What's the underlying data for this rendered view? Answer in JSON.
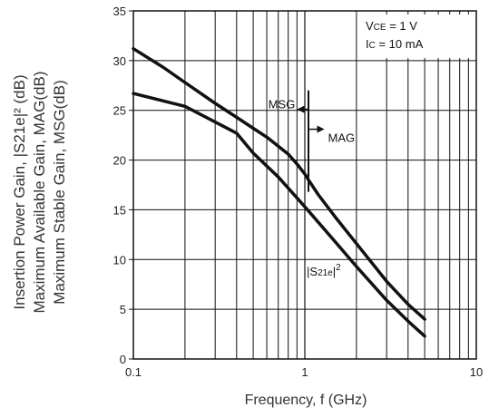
{
  "chart_data": {
    "type": "line",
    "xlabel": "Frequency, f (GHz)",
    "ylabel": {
      "line1": "Insertion Power Gain, |S21e|² (dB)",
      "line2": "Maximum Available Gain, MAG(dB)",
      "line3": "Maximum Stable Gain, MSG(dB)"
    },
    "x_scale": "log",
    "xlim": [
      0.1,
      10
    ],
    "ylim": [
      0,
      35
    ],
    "x_ticks": [
      "0.1",
      "1",
      "10"
    ],
    "y_ticks": [
      "0",
      "5",
      "10",
      "15",
      "20",
      "25",
      "30",
      "35"
    ],
    "grid": true,
    "conditions": {
      "vce": {
        "prefix": "V",
        "sub": "CE",
        "value": " = 1 V"
      },
      "ic": {
        "prefix": "I",
        "sub": "C",
        "value": " = 10 mA"
      }
    },
    "series": [
      {
        "key": "msg_mag",
        "x": [
          0.1,
          0.15,
          0.2,
          0.3,
          0.4,
          0.5,
          0.6,
          0.7,
          0.8,
          0.9,
          1.0,
          1.05,
          1.2,
          1.5,
          2.0,
          3.0,
          4.0,
          5.0
        ],
        "y": [
          31.2,
          29.3,
          27.8,
          25.7,
          24.3,
          23.2,
          22.3,
          21.4,
          20.6,
          19.6,
          18.6,
          18.0,
          16.5,
          14.3,
          11.6,
          7.8,
          5.5,
          4.0
        ]
      },
      {
        "key": "s21",
        "x": [
          0.1,
          0.2,
          0.4,
          0.5,
          0.7,
          1.0,
          1.5,
          2.0,
          3.0,
          4.0,
          5.0
        ],
        "y": [
          26.7,
          25.4,
          22.7,
          20.7,
          18.3,
          15.3,
          11.8,
          9.3,
          5.9,
          3.8,
          2.3
        ]
      }
    ],
    "annotations": {
      "msg": "MSG",
      "mag": "MAG",
      "s21": {
        "open": "|S",
        "sub": "21e",
        "close": "|",
        "sup": "2"
      },
      "divider_x": 1.05,
      "divider_y": [
        16.8,
        27.0
      ],
      "msg_arrow": {
        "x": [
          0.9,
          1.05
        ],
        "y": 25.1
      },
      "mag_arrow": {
        "x": [
          1.05,
          1.3
        ],
        "y": 23.1
      }
    }
  }
}
